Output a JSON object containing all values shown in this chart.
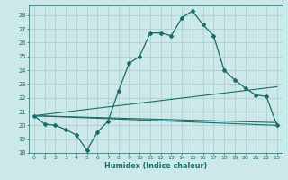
{
  "title": "",
  "xlabel": "Humidex (Indice chaleur)",
  "ylabel": "",
  "background_color": "#cce8e8",
  "grid_color": "#aacccc",
  "line_color": "#1a6b6b",
  "xlim": [
    -0.5,
    23.5
  ],
  "ylim": [
    18,
    28.7
  ],
  "yticks": [
    18,
    19,
    20,
    21,
    22,
    23,
    24,
    25,
    26,
    27,
    28
  ],
  "xticks": [
    0,
    1,
    2,
    3,
    4,
    5,
    6,
    7,
    8,
    9,
    10,
    11,
    12,
    13,
    14,
    15,
    16,
    17,
    18,
    19,
    20,
    21,
    22,
    23
  ],
  "series_main": {
    "x": [
      0,
      1,
      2,
      3,
      4,
      5,
      6,
      7,
      8,
      9,
      10,
      11,
      12,
      13,
      14,
      15,
      16,
      17,
      18,
      19,
      20,
      21,
      22,
      23
    ],
    "y": [
      20.7,
      20.1,
      20.0,
      19.7,
      19.3,
      18.2,
      19.5,
      20.3,
      22.5,
      24.5,
      25.0,
      26.7,
      26.7,
      26.5,
      27.8,
      28.3,
      27.3,
      26.5,
      24.0,
      23.3,
      22.7,
      22.2,
      22.1,
      20.0
    ]
  },
  "line1": {
    "x": [
      0,
      23
    ],
    "y": [
      20.7,
      20.0
    ]
  },
  "line2": {
    "x": [
      0,
      23
    ],
    "y": [
      20.7,
      22.8
    ]
  },
  "line3": {
    "x": [
      0,
      23
    ],
    "y": [
      20.7,
      20.2
    ]
  }
}
